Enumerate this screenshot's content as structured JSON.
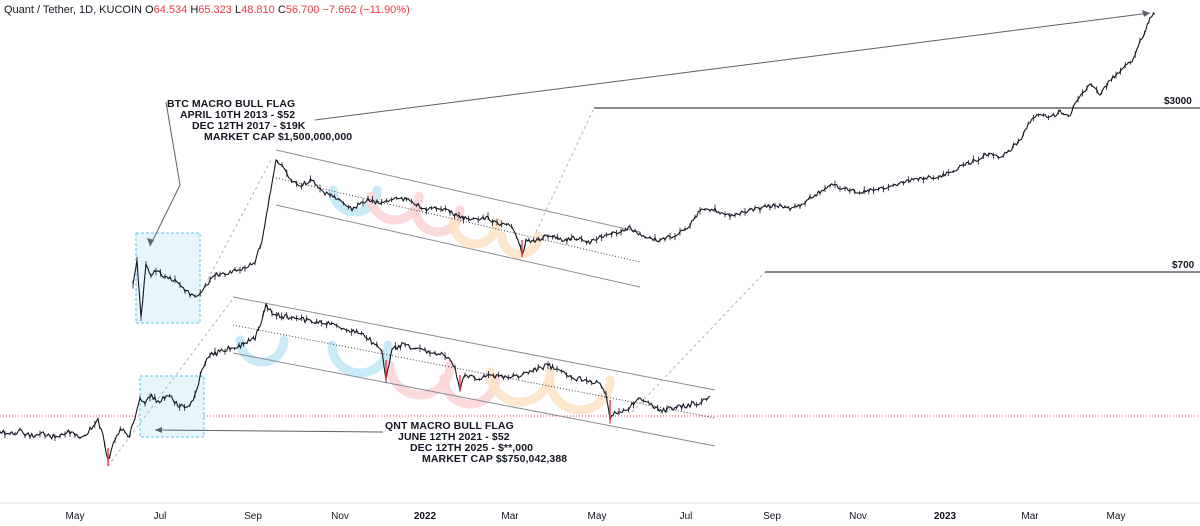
{
  "header": {
    "symbol": "Quant / Tether, 1D, KUCOIN",
    "o_label": "O",
    "o_value": "64.534",
    "h_label": "H",
    "h_value": "65.323",
    "l_label": "L",
    "l_value": "48.810",
    "c_label": "C",
    "c_value": "56.700",
    "change": "−7.662 (−11.90%)"
  },
  "annotations": {
    "btc": [
      "BTC MACRO BULL FLAG",
      "APRIL 10TH 2013 - $52",
      "DEC 12TH 2017 - $19K",
      "MARKET CAP $1,500,000,000"
    ],
    "qnt": [
      "QNT MACRO BULL FLAG",
      "JUNE 12TH 2021 - $52",
      "DEC 12TH 2025 - $**,000",
      "MARKET CAP $$750,042,388"
    ]
  },
  "levels": [
    "$3000",
    "$700"
  ],
  "colors": {
    "price": "#131722",
    "down": "#f23645",
    "grid_line": "#e0e3eb",
    "box_fill": "#e6f6fb",
    "box_stroke": "#5cc6e8",
    "arc_blue": "#bfe7f6",
    "arc_red": "#fbd3d6",
    "arc_orange": "#fde3c4"
  },
  "chart_data": {
    "type": "line",
    "x_axis_ticks": [
      "May",
      "Jul",
      "Sep",
      "Nov",
      "2022",
      "Mar",
      "May",
      "Jul",
      "Sep",
      "Nov",
      "2023",
      "Mar",
      "May"
    ],
    "series": [
      {
        "x": [
          "2021-05",
          "2021-06",
          "2021-07",
          "2021-08",
          "2021-09",
          "2021-10",
          "2021-11",
          "2021-12",
          "2022-01",
          "2022-02",
          "2022-03",
          "2022-04",
          "2022-05",
          "2022-06",
          "2022-07"
        ],
        "y": [
          55,
          50,
          65,
          110,
          300,
          270,
          250,
          200,
          180,
          140,
          150,
          120,
          70,
          80,
          90
        ]
      },
      {
        "x": [
          "2021-09",
          "2021-10",
          "2021-11",
          "2021-12",
          "2022-01",
          "2022-02",
          "2022-03",
          "2022-04",
          "2022-05",
          "2022-06",
          "2022-07",
          "2022-08",
          "2022-09",
          "2022-10",
          "2022-11",
          "2022-12",
          "2023-01",
          "2023-02",
          "2023-03",
          "2023-04",
          "2023-05",
          "2023-06"
        ],
        "y": [
          700,
          650,
          600,
          550,
          500,
          450,
          400,
          420,
          450,
          500,
          550,
          600,
          700,
          750,
          800,
          900,
          1100,
          1500,
          2500,
          3000,
          4000,
          5500
        ]
      }
    ]
  }
}
